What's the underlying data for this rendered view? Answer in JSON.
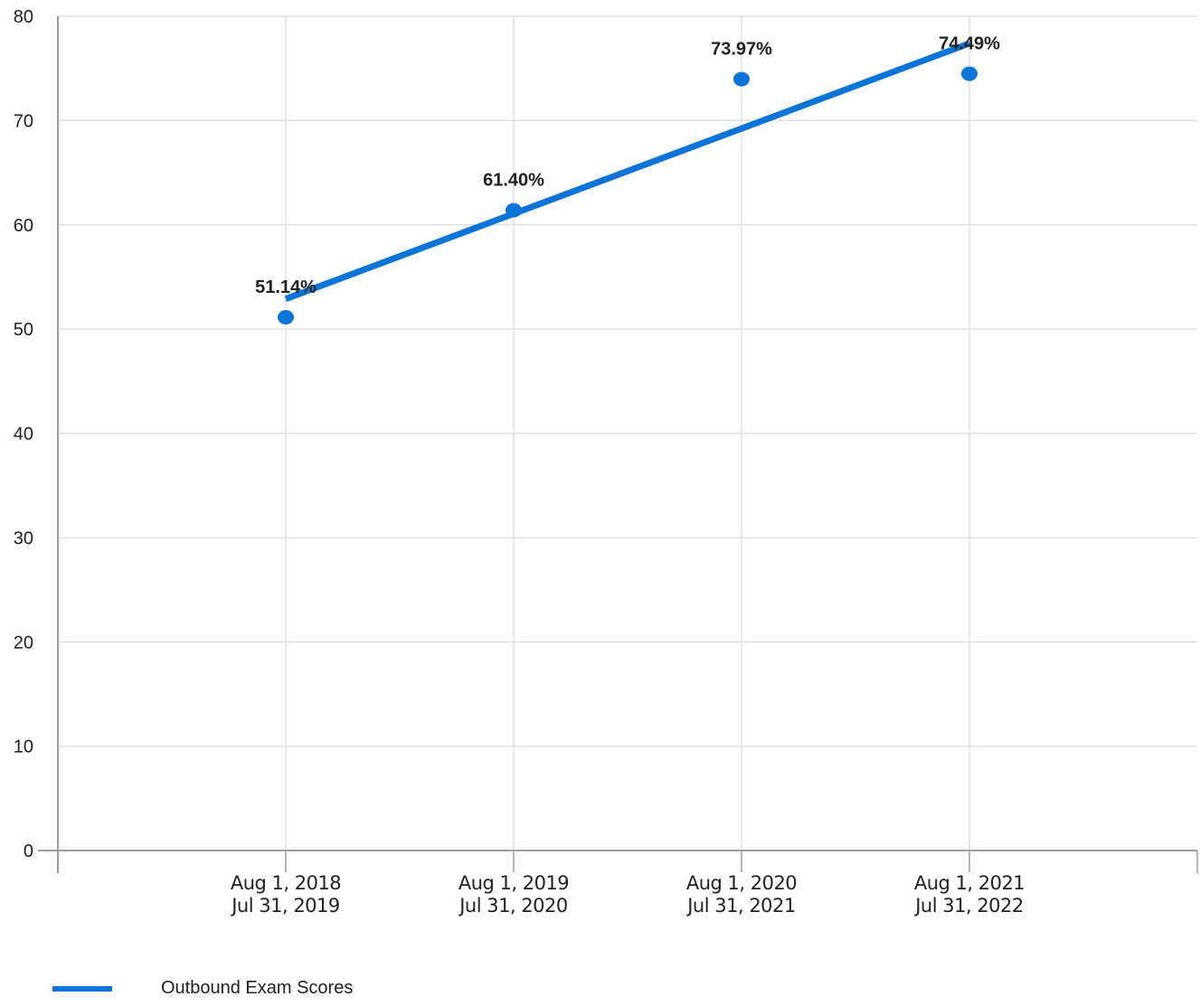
{
  "chart_data": {
    "type": "scatter",
    "categories": [
      [
        "Aug 1, 2018",
        "Jul 31, 2019"
      ],
      [
        "Aug 1, 2019",
        "Jul 31, 2020"
      ],
      [
        "Aug 1, 2020",
        "Jul 31, 2021"
      ],
      [
        "Aug 1, 2021",
        "Jul 31, 2022"
      ]
    ],
    "series": [
      {
        "values": [
          51.14,
          61.4,
          73.97,
          74.49
        ],
        "labels": [
          "51.14%",
          "61.40%",
          "73.97%",
          "74.49%"
        ]
      }
    ],
    "trendline": {
      "name": "Outbound Exam Scores",
      "start": [
        1,
        52.9
      ],
      "end": [
        4,
        77.4
      ]
    },
    "ylim": [
      0,
      80
    ],
    "yticks": [
      0,
      10,
      20,
      30,
      40,
      50,
      60,
      70,
      80
    ],
    "xlim": [
      0,
      5
    ],
    "grid": true,
    "legend_position": "bottom-left",
    "colors": {
      "series": "#0b74d6",
      "grid": "#e0e0e0",
      "axis": "#9e9e9e",
      "text": "#222222"
    }
  }
}
